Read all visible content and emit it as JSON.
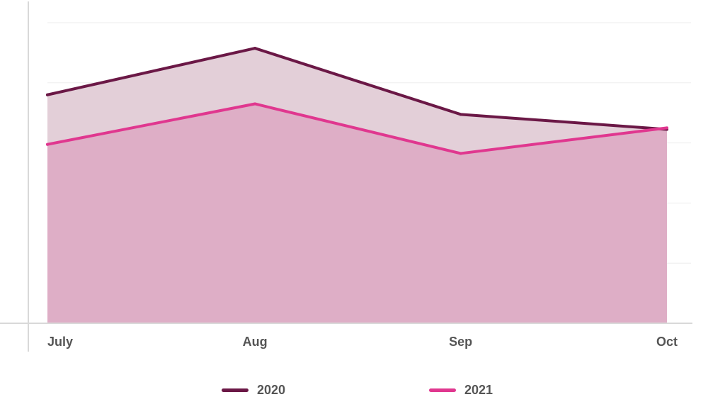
{
  "chart_data": {
    "type": "area",
    "title": "",
    "xlabel": "",
    "ylabel": "",
    "categories": [
      "July",
      "Aug",
      "Sep",
      "Oct"
    ],
    "ylim": [
      0,
      100
    ],
    "grid": true,
    "legend_position": "bottom",
    "series": [
      {
        "name": "2020",
        "values": [
          76,
          91.5,
          69.5,
          64.5
        ],
        "color": "#6b1846",
        "fill": "#e3cfd8"
      },
      {
        "name": "2021",
        "values": [
          59.5,
          73,
          56.5,
          65
        ],
        "color": "#e0378f",
        "fill": "#deaec6"
      }
    ]
  }
}
